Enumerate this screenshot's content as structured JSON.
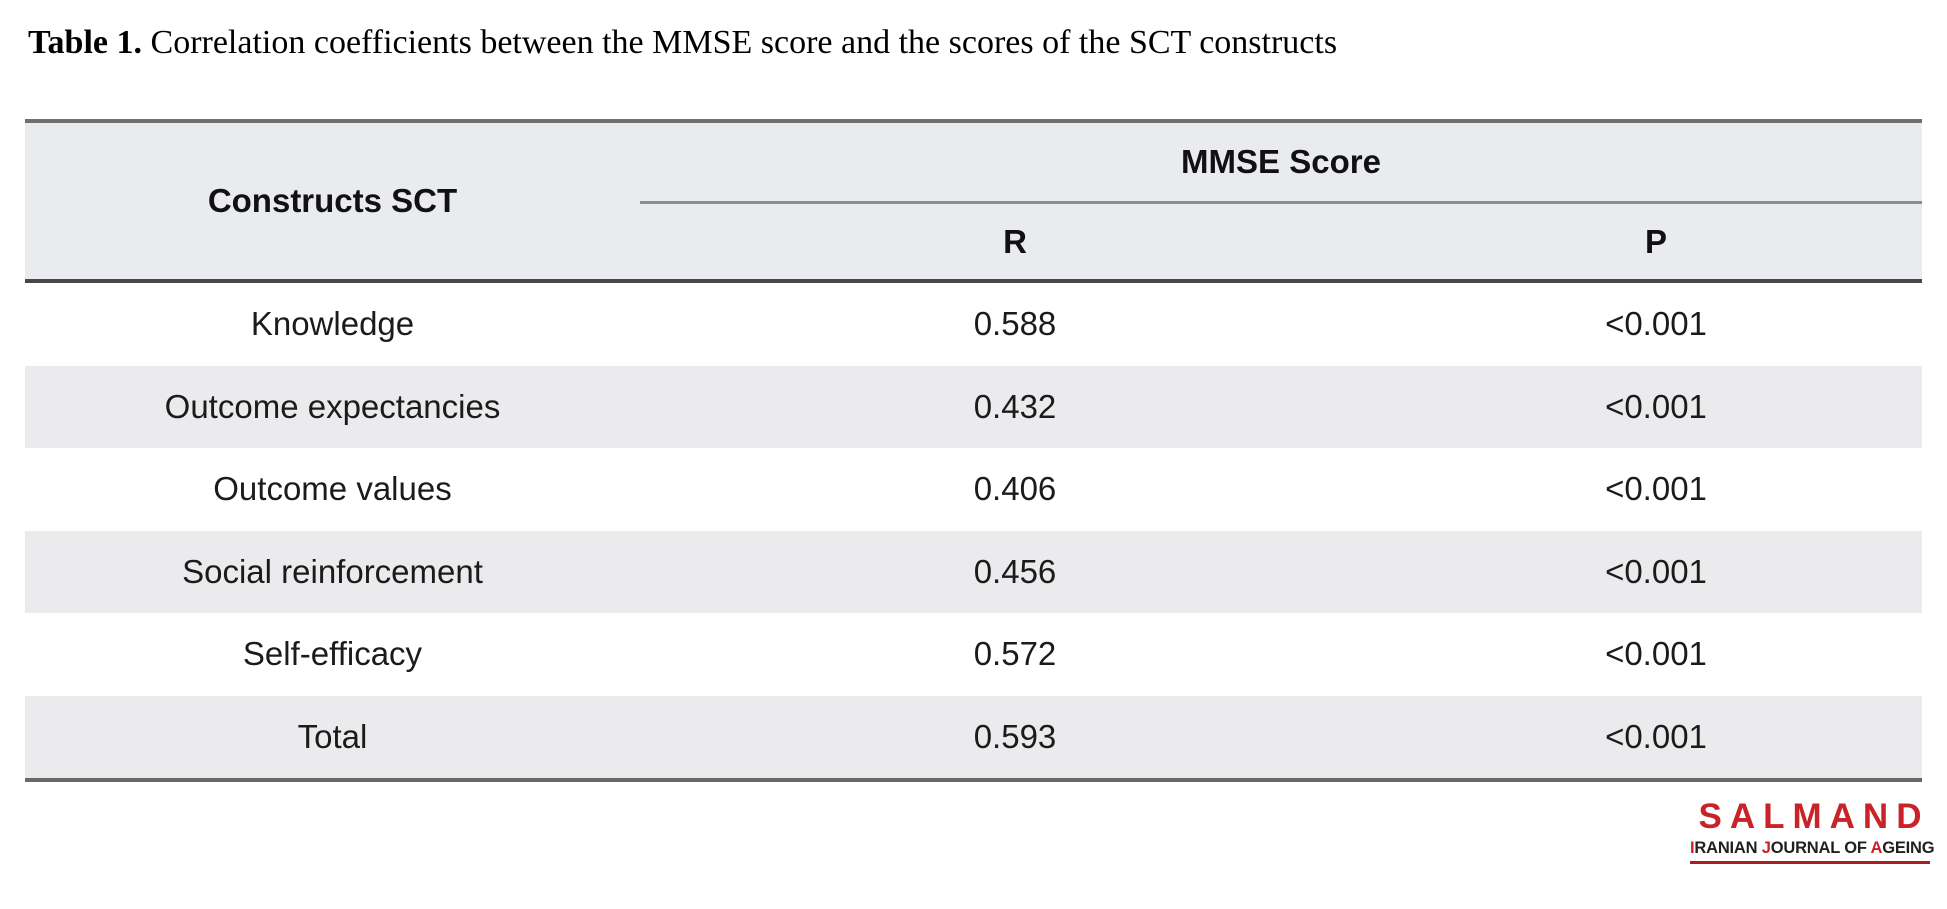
{
  "title": {
    "label": "Table 1.",
    "text": " Correlation coefficients between the MMSE score and the scores of the SCT constructs"
  },
  "table": {
    "constructs_header": "Constructs SCT",
    "group_header": "MMSE Score",
    "sub_header_r": "R",
    "sub_header_p": "P",
    "rows": [
      {
        "construct": "Knowledge",
        "r": "0.588",
        "p": "<0.001"
      },
      {
        "construct": "Outcome expectancies",
        "r": "0.432",
        "p": "<0.001"
      },
      {
        "construct": "Outcome values",
        "r": "0.406",
        "p": "<0.001"
      },
      {
        "construct": "Social reinforcement",
        "r": "0.456",
        "p": "<0.001"
      },
      {
        "construct": "Self-efficacy",
        "r": "0.572",
        "p": "<0.001"
      },
      {
        "construct": "Total",
        "r": "0.593",
        "p": "<0.001"
      }
    ]
  },
  "logo": {
    "wordmark": "SALMAND",
    "subtitle": "IRANIAN JOURNAL OF AGEING",
    "subtitle_parts": [
      {
        "text": "I",
        "red": true
      },
      {
        "text": "RANIAN ",
        "red": false
      },
      {
        "text": "J",
        "red": true
      },
      {
        "text": "OURNAL OF ",
        "red": false
      },
      {
        "text": "A",
        "red": true
      },
      {
        "text": "GEING",
        "red": false
      }
    ]
  },
  "colors": {
    "accent_red": "#c9232a",
    "header_bg": "#eaebee",
    "row_stripe": "#ebebed",
    "rule_dark": "#474747",
    "rule_gray": "#6f6f6f"
  }
}
